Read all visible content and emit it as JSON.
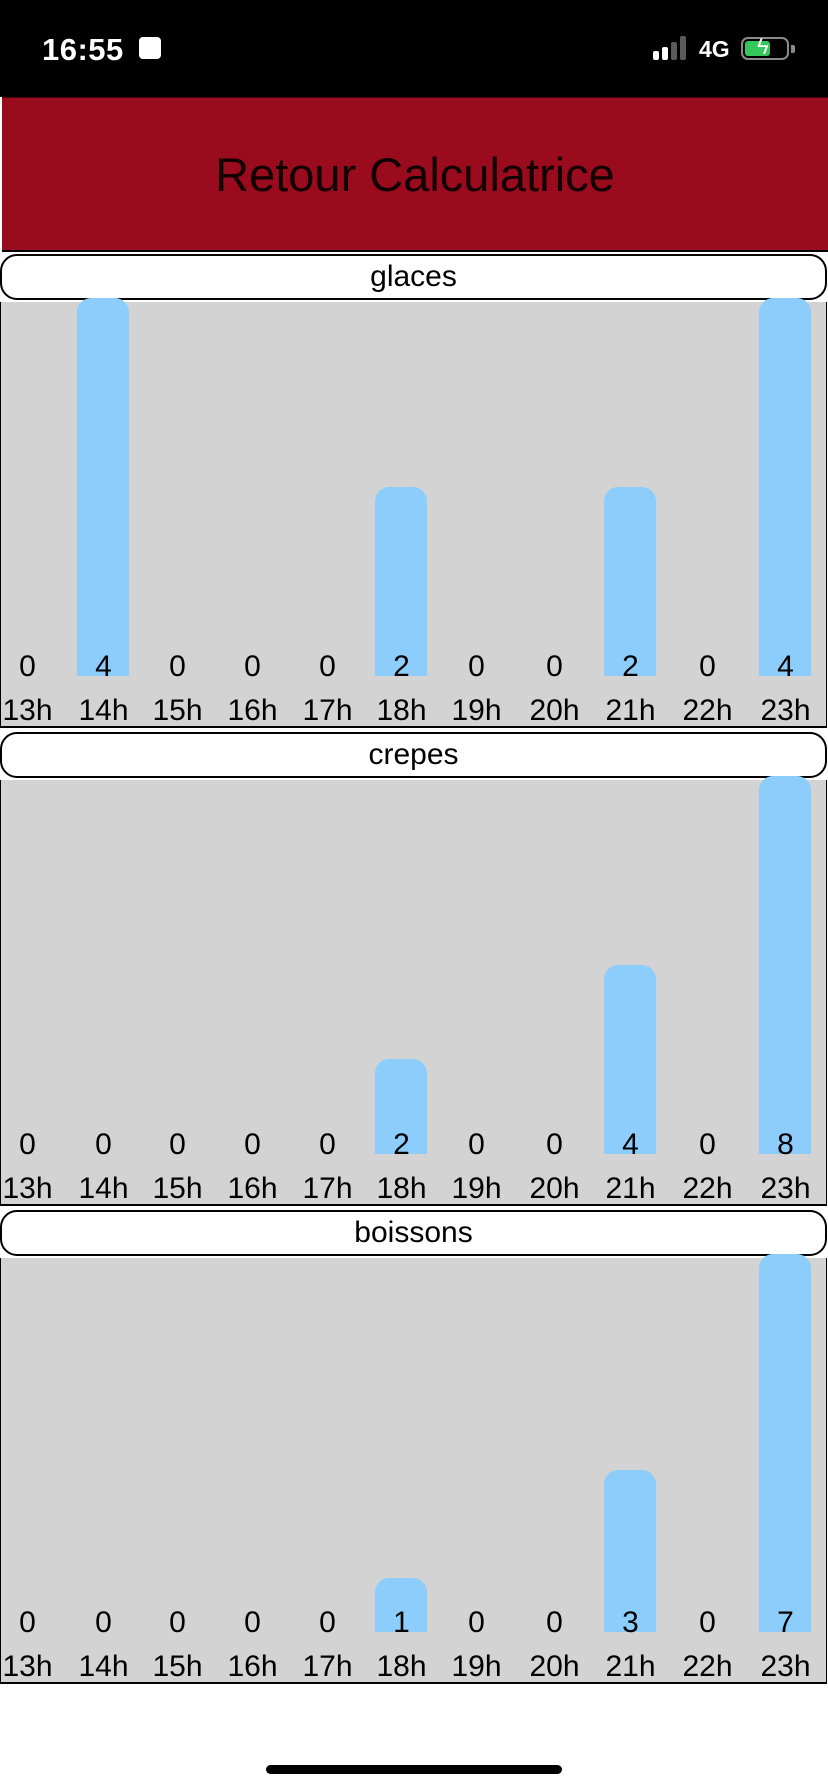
{
  "status_bar": {
    "time": "16:55",
    "network": "4G",
    "colors": {
      "background": "#000000",
      "text": "#ffffff",
      "battery": "#34c759"
    }
  },
  "header": {
    "return_label": "Retour Calculatrice",
    "color": "#990b1d"
  },
  "bar_color": "#8dcdfb",
  "chart_data": [
    {
      "type": "bar",
      "title": "glaces",
      "categories": [
        "13h",
        "14h",
        "15h",
        "16h",
        "17h",
        "18h",
        "19h",
        "20h",
        "21h",
        "22h",
        "23h"
      ],
      "values": [
        0,
        4,
        0,
        0,
        0,
        2,
        0,
        0,
        2,
        0,
        4
      ],
      "ylim": [
        0,
        4
      ]
    },
    {
      "type": "bar",
      "title": "crepes",
      "categories": [
        "13h",
        "14h",
        "15h",
        "16h",
        "17h",
        "18h",
        "19h",
        "20h",
        "21h",
        "22h",
        "23h"
      ],
      "values": [
        0,
        0,
        0,
        0,
        0,
        2,
        0,
        0,
        4,
        0,
        8
      ],
      "ylim": [
        0,
        8
      ]
    },
    {
      "type": "bar",
      "title": "boissons",
      "categories": [
        "13h",
        "14h",
        "15h",
        "16h",
        "17h",
        "18h",
        "19h",
        "20h",
        "21h",
        "22h",
        "23h"
      ],
      "values": [
        0,
        0,
        0,
        0,
        0,
        1,
        0,
        0,
        3,
        0,
        7
      ],
      "ylim": [
        0,
        7
      ]
    }
  ]
}
